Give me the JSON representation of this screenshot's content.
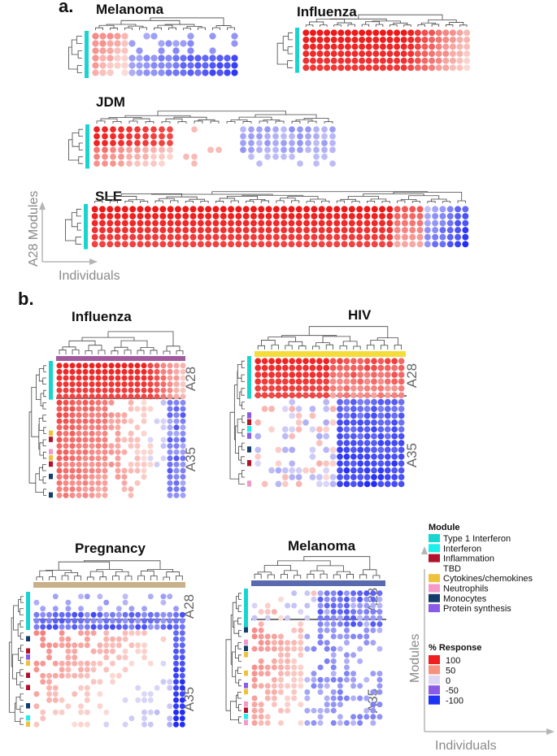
{
  "panel_a_label": "a.",
  "panel_b_label": "b.",
  "axes": {
    "modules": "A28 Modules",
    "individuals": "Individuals",
    "modules_short": "Modules"
  },
  "module_sets": {
    "a28": "A28",
    "a35": "A35"
  },
  "legend": {
    "module_title": "Module",
    "modules": [
      {
        "name": "Type 1 Interferon",
        "color": "#19d5d0"
      },
      {
        "name": "Interferon",
        "color": "#1cf0e8"
      },
      {
        "name": "Inflammation",
        "color": "#b3122b"
      },
      {
        "name": "TBD",
        "color": "#ffffff"
      },
      {
        "name": "Cytokines/chemokines",
        "color": "#f0c23b"
      },
      {
        "name": "Neutrophils",
        "color": "#f39acb"
      },
      {
        "name": "Monocytes",
        "color": "#143d6c"
      },
      {
        "name": "Protein synthesis",
        "color": "#8a5ae8"
      }
    ],
    "response_title": "% Response",
    "response": [
      {
        "label": "100",
        "value": 100,
        "color": "#f01e1e"
      },
      {
        "label": "50",
        "value": 50,
        "color": "#f7907c"
      },
      {
        "label": "0",
        "value": 0,
        "color": "#dcd8f2"
      },
      {
        "label": "-50",
        "value": -50,
        "color": "#8a5ae8"
      },
      {
        "label": "-100",
        "value": -100,
        "color": "#1f33f5"
      }
    ]
  },
  "chart_data": [
    {
      "type": "heatmap",
      "panel": "a",
      "title": "Melanoma",
      "rows": 6,
      "cols": 20,
      "pattern": "melanoma",
      "module_sets": [
        "A28"
      ]
    },
    {
      "type": "heatmap",
      "panel": "a",
      "title": "Influenza",
      "rows": 6,
      "cols": 24,
      "pattern": "influenza_a",
      "module_sets": [
        "A28"
      ]
    },
    {
      "type": "heatmap",
      "panel": "a",
      "title": "JDM",
      "rows": 6,
      "cols": 30,
      "pattern": "jdm",
      "module_sets": [
        "A28"
      ]
    },
    {
      "type": "heatmap",
      "panel": "a",
      "title": "SLE",
      "rows": 6,
      "cols": 50,
      "pattern": "sle",
      "module_sets": [
        "A28"
      ]
    },
    {
      "type": "heatmap",
      "panel": "b",
      "title": "Influenza",
      "rows": 22,
      "cols": 20,
      "a28_rows": 6,
      "top_bar_color": "#a25a9e",
      "pattern": "influenza_b",
      "module_sets": [
        "A28",
        "A35"
      ]
    },
    {
      "type": "heatmap",
      "panel": "b",
      "title": "HIV",
      "rows": 19,
      "cols": 22,
      "a28_rows": 6,
      "top_bar_color": "#f4dc3a",
      "pattern": "hiv",
      "module_sets": [
        "A28",
        "A35"
      ]
    },
    {
      "type": "heatmap",
      "panel": "b",
      "title": "Pregnancy",
      "rows": 22,
      "cols": 24,
      "a28_rows": 6,
      "top_bar_color": "#c8b089",
      "pattern": "pregnancy",
      "module_sets": [
        "A28",
        "A35"
      ]
    },
    {
      "type": "heatmap",
      "panel": "b",
      "title": "Melanoma",
      "rows": 22,
      "cols": 20,
      "a28_rows": 6,
      "top_bar_color": "#5a6aae",
      "pattern": "melanoma_b",
      "module_sets": [
        "A28",
        "A35"
      ]
    }
  ]
}
